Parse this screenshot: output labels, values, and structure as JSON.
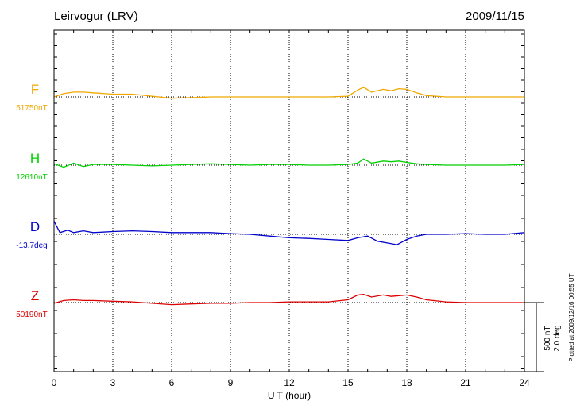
{
  "header": {
    "station": "Leirvogur (LRV)",
    "date": "2009/11/15"
  },
  "footer": {
    "plotted_note": "Plotted at 2009/12/16 00:55 UT"
  },
  "scale_bar": {
    "nt_label": "500 nT",
    "deg_label": "2.0 deg"
  },
  "chart_data": {
    "type": "line",
    "title": "Leirvogur (LRV)",
    "date": "2009/11/15",
    "xlabel": "U T (hour)",
    "xlim": [
      0,
      24
    ],
    "x_ticks": [
      "0",
      "3",
      "6",
      "9",
      "12",
      "15",
      "18",
      "21",
      "24"
    ],
    "grid": "dotted vertical lines every 3 hours",
    "scale": "500 nT / 2.0 deg per bar",
    "series": [
      {
        "name": "F",
        "baseline_label": "51750nT",
        "color": "#f0a800",
        "unit": "nT",
        "x": [
          0,
          0.5,
          1,
          1.5,
          2,
          3,
          4,
          5,
          6,
          7,
          8,
          9,
          10,
          11,
          12,
          13,
          14,
          15,
          15.5,
          15.8,
          16.2,
          16.8,
          17.2,
          17.6,
          18,
          18.5,
          19,
          20,
          21,
          22,
          23,
          24
        ],
        "values": [
          0,
          25,
          35,
          35,
          30,
          20,
          20,
          5,
          -10,
          -5,
          0,
          0,
          0,
          0,
          0,
          0,
          0,
          5,
          50,
          70,
          35,
          55,
          45,
          60,
          55,
          30,
          10,
          0,
          0,
          0,
          0,
          0
        ]
      },
      {
        "name": "H",
        "baseline_label": "12610nT",
        "color": "#00d000",
        "unit": "nT",
        "x": [
          0,
          0.5,
          1,
          1.5,
          2,
          3,
          4,
          5,
          6,
          7,
          8,
          9,
          10,
          11,
          12,
          13,
          14,
          15,
          15.5,
          15.8,
          16.2,
          16.8,
          17.2,
          17.6,
          18,
          18.5,
          19,
          20,
          21,
          22,
          23,
          24
        ],
        "values": [
          10,
          -15,
          15,
          -10,
          5,
          5,
          0,
          -5,
          0,
          5,
          10,
          5,
          0,
          5,
          5,
          0,
          0,
          5,
          15,
          45,
          15,
          30,
          25,
          30,
          20,
          10,
          5,
          0,
          0,
          0,
          0,
          5
        ]
      },
      {
        "name": "D",
        "baseline_label": "-13.7deg",
        "color": "#0000cc",
        "unit": "deg",
        "x": [
          0,
          0.3,
          0.7,
          1,
          1.5,
          2,
          3,
          4,
          5,
          6,
          7,
          8,
          9,
          10,
          11,
          12,
          13,
          14,
          15,
          15.5,
          16,
          16.5,
          17,
          17.5,
          18,
          18.5,
          19,
          20,
          21,
          22,
          23,
          24
        ],
        "values": [
          0.38,
          0.05,
          0.12,
          0.05,
          0.1,
          0.05,
          0.08,
          0.1,
          0.08,
          0.05,
          0.05,
          0.05,
          0.02,
          0.0,
          -0.05,
          -0.1,
          -0.12,
          -0.15,
          -0.18,
          -0.1,
          -0.05,
          -0.2,
          -0.25,
          -0.3,
          -0.15,
          -0.05,
          0.0,
          0.0,
          0.02,
          0.0,
          0.0,
          0.05
        ]
      },
      {
        "name": "Z",
        "baseline_label": "50190nT",
        "color": "#dd0000",
        "unit": "nT",
        "x": [
          0,
          0.5,
          1,
          1.5,
          2,
          3,
          4,
          5,
          6,
          7,
          8,
          9,
          10,
          11,
          12,
          13,
          14,
          15,
          15.5,
          15.8,
          16.2,
          16.8,
          17.2,
          17.6,
          18,
          18.5,
          19,
          20,
          21,
          22,
          23,
          24
        ],
        "values": [
          -5,
          15,
          20,
          15,
          15,
          10,
          5,
          -5,
          -15,
          -10,
          -5,
          -5,
          0,
          0,
          5,
          5,
          5,
          20,
          55,
          60,
          40,
          55,
          45,
          50,
          55,
          40,
          20,
          5,
          0,
          0,
          0,
          0
        ]
      }
    ]
  }
}
